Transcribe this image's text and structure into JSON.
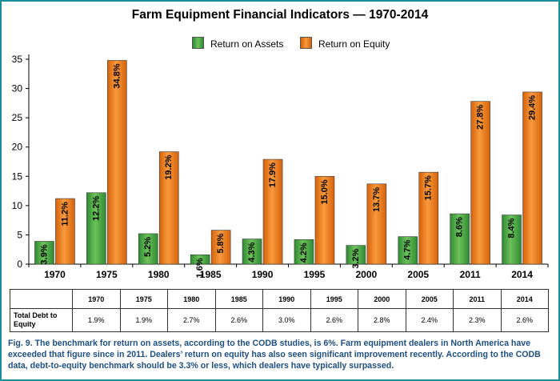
{
  "chart_data": {
    "type": "bar",
    "title": "Farm Equipment Financial Indicators — 1970-2014",
    "categories": [
      "1970",
      "1975",
      "1980",
      "1985",
      "1990",
      "1995",
      "2000",
      "2005",
      "2011",
      "2014"
    ],
    "series": [
      {
        "name": "Return on Assets",
        "color": "#44a445",
        "values": [
          3.9,
          12.2,
          5.2,
          1.6,
          4.3,
          4.2,
          3.2,
          4.7,
          8.6,
          8.4
        ],
        "labels": [
          "3.9%",
          "12.2%",
          "5.2%",
          "1.6%",
          "4.3%",
          "4.2%",
          "3.2%",
          "4.7%",
          "8.6%",
          "8.4%"
        ]
      },
      {
        "name": "Return on Equity",
        "color": "#ee7a1a",
        "values": [
          11.2,
          34.8,
          19.2,
          5.8,
          17.9,
          15.0,
          13.7,
          15.7,
          27.8,
          29.4
        ],
        "labels": [
          "11.2%",
          "34.8%",
          "19.2%",
          "5.8%",
          "17.9%",
          "15.0%",
          "13.7%",
          "15.7%",
          "27.8%",
          "29.4%"
        ]
      }
    ],
    "ylim": [
      0,
      35
    ],
    "yticks": [
      "0",
      "5",
      "10",
      "15",
      "20",
      "25",
      "30",
      "35"
    ],
    "grid": false,
    "legend": "top-center"
  },
  "table": {
    "headers": [
      "1970",
      "1975",
      "1980",
      "1985",
      "1990",
      "1995",
      "2000",
      "2005",
      "2011",
      "2014"
    ],
    "row_label": "Total Debt to Equity",
    "values": [
      "1.9%",
      "1.9%",
      "2.7%",
      "2.6%",
      "3.0%",
      "2.6%",
      "2.8%",
      "2.4%",
      "2.3%",
      "2.6%"
    ]
  },
  "caption": "Fig. 9. The benchmark for return on assets, according to the CODB studies, is 6%. Farm equipment dealers in North America have exceeded that figure since in 2011. Dealers’ return on equity has also seen significant improvement recently. According to the CODB data, debt-to-equity benchmark should be 3.3% or less, which dealers have typically surpassed."
}
